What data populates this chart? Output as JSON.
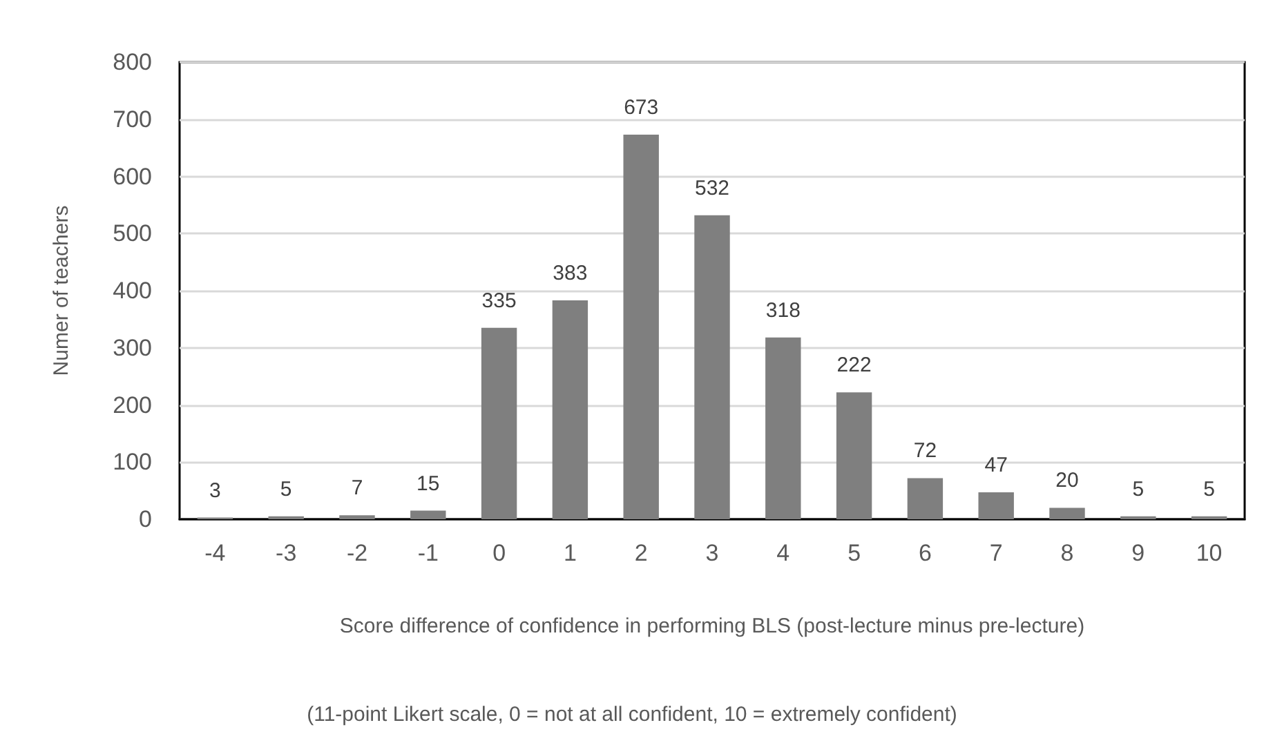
{
  "chart_data": {
    "type": "bar",
    "xlabel": "Score difference of confidence in performing BLS (post-lecture minus pre-lecture)",
    "ylabel": "Numer of teachers",
    "annotations": [
      "(11-point Likert scale, 0 = not at all confident, 10 = extremely confident)"
    ],
    "categories": [
      "-4",
      "-3",
      "-2",
      "-1",
      "0",
      "1",
      "2",
      "3",
      "4",
      "5",
      "6",
      "7",
      "8",
      "9",
      "10"
    ],
    "values": [
      3,
      5,
      7,
      15,
      335,
      383,
      673,
      532,
      318,
      222,
      72,
      47,
      20,
      5,
      5
    ],
    "color": "#7f7f7f",
    "ylim": [
      0,
      800
    ],
    "yticks": [
      0,
      100,
      200,
      300,
      400,
      500,
      600,
      700,
      800
    ],
    "grid": "y",
    "data_labels": true
  }
}
